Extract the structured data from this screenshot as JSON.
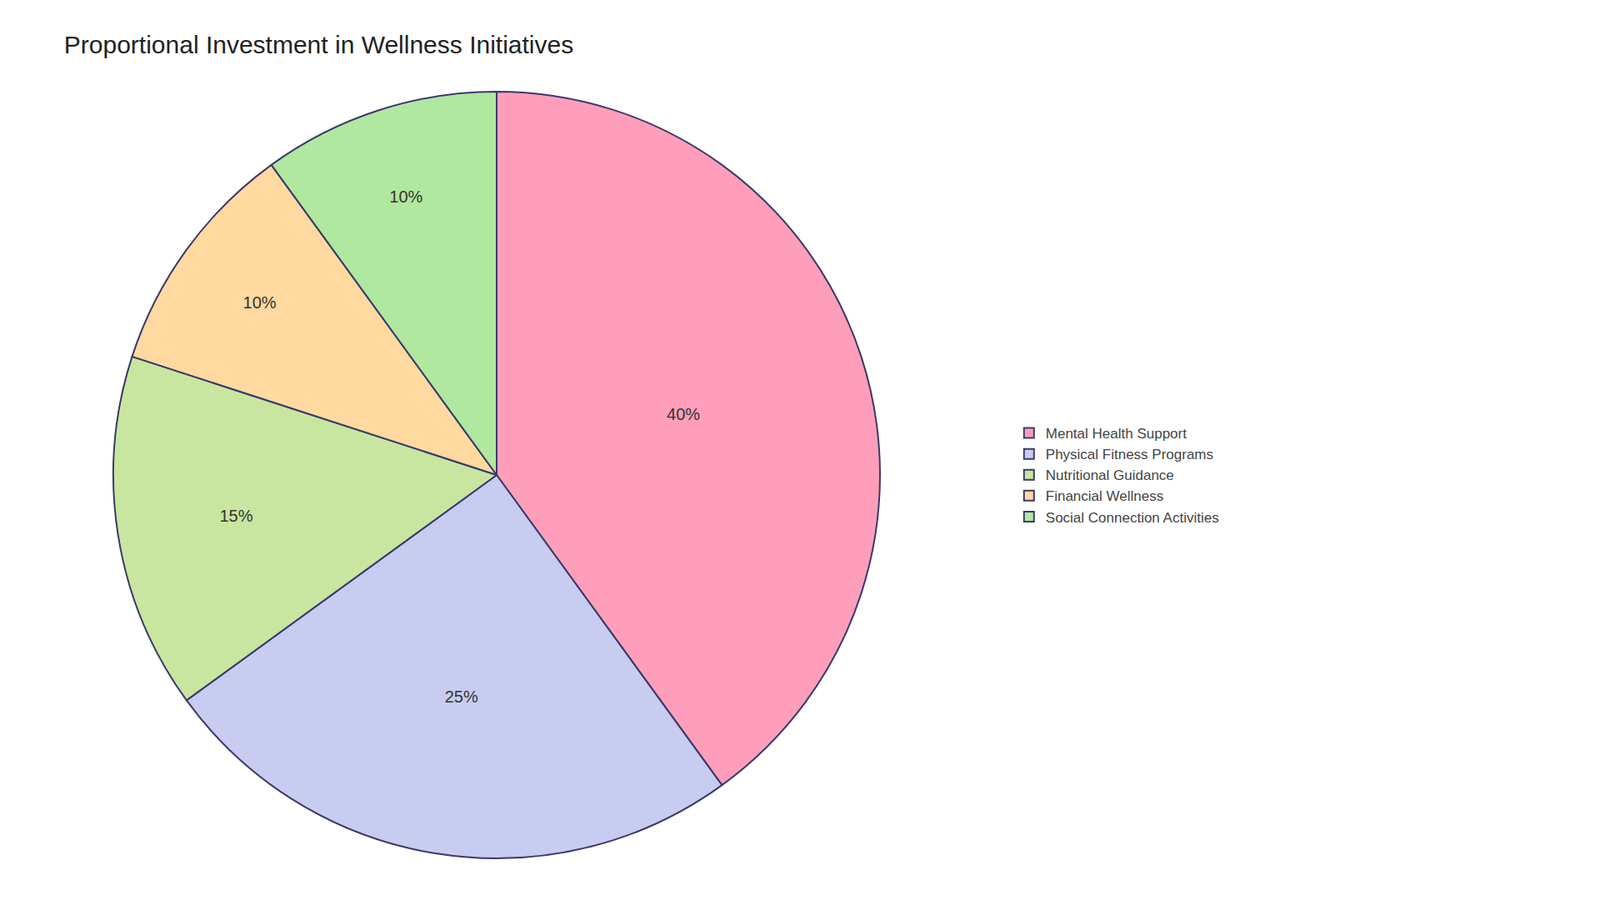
{
  "chart_data": {
    "type": "pie",
    "title": "Proportional Investment in Wellness Initiatives",
    "categories": [
      "Mental Health Support",
      "Physical Fitness Programs",
      "Nutritional Guidance",
      "Financial Wellness",
      "Social Connection Activities"
    ],
    "values": [
      40,
      25,
      15,
      10,
      10
    ],
    "value_labels": [
      "40%",
      "25%",
      "15%",
      "10%",
      "10%"
    ],
    "colors": [
      "#FF9EBB",
      "#C8CCF0",
      "#C8E6A0",
      "#FFD9A0",
      "#B0E8A0"
    ],
    "data_labels": true,
    "legend": "right"
  }
}
